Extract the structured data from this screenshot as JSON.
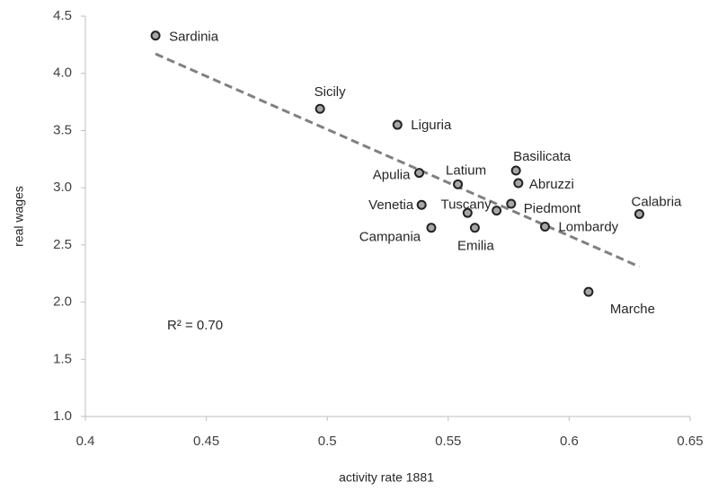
{
  "chart_data": {
    "type": "scatter",
    "x_label": "activity rate  1881",
    "y_label": "real wages",
    "annotation": "R² = 0.70",
    "categories": [
      "Sardinia",
      "Sicily",
      "Liguria",
      "Apulia",
      "Latium",
      "Basilicata",
      "Abruzzi",
      "Venetia",
      null,
      "Tuscany",
      "Piedmont",
      "Campania",
      "Emilia",
      "Lombardy",
      "Calabria",
      "Marche"
    ],
    "x": [
      0.429,
      0.497,
      0.529,
      0.538,
      0.554,
      0.578,
      0.579,
      0.539,
      0.558,
      0.57,
      0.576,
      0.543,
      0.561,
      0.59,
      0.629,
      0.608
    ],
    "values": [
      4.33,
      3.69,
      3.55,
      3.13,
      3.03,
      3.15,
      3.04,
      2.85,
      2.78,
      2.8,
      2.86,
      2.65,
      2.65,
      2.66,
      2.77,
      2.09
    ],
    "color": "#a6a6a6",
    "trendline": {
      "x": [
        0.429,
        0.629
      ],
      "y": [
        4.17,
        2.31
      ],
      "color": "#808080"
    },
    "xlim": [
      0.4,
      0.65
    ],
    "xticks": [
      0.4,
      0.45,
      0.5,
      0.55,
      0.6,
      0.65
    ],
    "ylim": [
      1,
      4.5
    ],
    "yticks": [
      {
        "value": 1,
        "label": "1.0"
      },
      1.5,
      {
        "value": 2,
        "label": "2.0"
      },
      2.5,
      {
        "value": 3,
        "label": "3.0"
      },
      3.5,
      {
        "value": 4,
        "label": "4.0"
      },
      4.5
    ],
    "grid": false
  }
}
